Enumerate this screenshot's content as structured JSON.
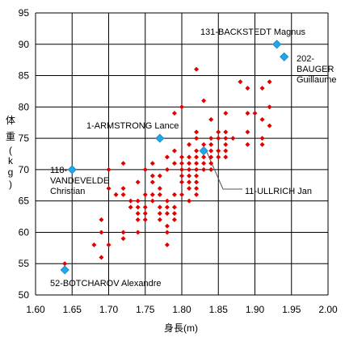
{
  "chart_data": {
    "type": "scatter",
    "title": "",
    "xlabel": "身長(m)",
    "ylabel_chars": [
      "体",
      "重",
      "(",
      "k",
      "g",
      ")"
    ],
    "xlim": [
      1.6,
      2.0
    ],
    "ylim": [
      50,
      95
    ],
    "xticks": [
      "1.60",
      "1.65",
      "1.70",
      "1.75",
      "1.80",
      "1.85",
      "1.90",
      "1.95",
      "2.00"
    ],
    "yticks": [
      "50",
      "55",
      "60",
      "65",
      "70",
      "75",
      "80",
      "85",
      "90",
      "95"
    ],
    "grid": true,
    "colors": {
      "riders": "#e00000",
      "highlight": "#1fa8ea",
      "highlight_edge": "#1b7fc0",
      "grid": "#000000"
    },
    "series": [
      {
        "points": [
          [
            1.64,
            55
          ],
          [
            1.68,
            58
          ],
          [
            1.69,
            60
          ],
          [
            1.69,
            62
          ],
          [
            1.69,
            56
          ],
          [
            1.7,
            58
          ],
          [
            1.7,
            70
          ],
          [
            1.7,
            67
          ],
          [
            1.71,
            66
          ],
          [
            1.72,
            71
          ],
          [
            1.72,
            67
          ],
          [
            1.72,
            66
          ],
          [
            1.72,
            59
          ],
          [
            1.72,
            60
          ],
          [
            1.73,
            64
          ],
          [
            1.73,
            65
          ],
          [
            1.74,
            68
          ],
          [
            1.74,
            65
          ],
          [
            1.74,
            64
          ],
          [
            1.74,
            63
          ],
          [
            1.74,
            62
          ],
          [
            1.74,
            60
          ],
          [
            1.75,
            70
          ],
          [
            1.75,
            66
          ],
          [
            1.75,
            64
          ],
          [
            1.75,
            63
          ],
          [
            1.75,
            62
          ],
          [
            1.76,
            71
          ],
          [
            1.76,
            69
          ],
          [
            1.76,
            68
          ],
          [
            1.76,
            66
          ],
          [
            1.76,
            65
          ],
          [
            1.77,
            69
          ],
          [
            1.77,
            67
          ],
          [
            1.77,
            66
          ],
          [
            1.77,
            64
          ],
          [
            1.77,
            63
          ],
          [
            1.77,
            62
          ],
          [
            1.78,
            72
          ],
          [
            1.78,
            70
          ],
          [
            1.78,
            65
          ],
          [
            1.78,
            64
          ],
          [
            1.78,
            63
          ],
          [
            1.78,
            61
          ],
          [
            1.78,
            58
          ],
          [
            1.78,
            60
          ],
          [
            1.79,
            79
          ],
          [
            1.79,
            73
          ],
          [
            1.79,
            71
          ],
          [
            1.79,
            66
          ],
          [
            1.79,
            64
          ],
          [
            1.79,
            63
          ],
          [
            1.79,
            62
          ],
          [
            1.8,
            80
          ],
          [
            1.8,
            72
          ],
          [
            1.8,
            71
          ],
          [
            1.8,
            70
          ],
          [
            1.8,
            69
          ],
          [
            1.8,
            68
          ],
          [
            1.8,
            66
          ],
          [
            1.81,
            74
          ],
          [
            1.81,
            72
          ],
          [
            1.81,
            71
          ],
          [
            1.81,
            70
          ],
          [
            1.81,
            69
          ],
          [
            1.81,
            68
          ],
          [
            1.81,
            67
          ],
          [
            1.81,
            65
          ],
          [
            1.82,
            86
          ],
          [
            1.82,
            76
          ],
          [
            1.82,
            75
          ],
          [
            1.82,
            73
          ],
          [
            1.82,
            72
          ],
          [
            1.82,
            71
          ],
          [
            1.82,
            70
          ],
          [
            1.82,
            69
          ],
          [
            1.82,
            68
          ],
          [
            1.82,
            67
          ],
          [
            1.82,
            66
          ],
          [
            1.83,
            81
          ],
          [
            1.83,
            74
          ],
          [
            1.83,
            72
          ],
          [
            1.83,
            71
          ],
          [
            1.83,
            70
          ],
          [
            1.84,
            78
          ],
          [
            1.84,
            75
          ],
          [
            1.84,
            74
          ],
          [
            1.84,
            73
          ],
          [
            1.84,
            72
          ],
          [
            1.84,
            71
          ],
          [
            1.84,
            70
          ],
          [
            1.85,
            76
          ],
          [
            1.85,
            75
          ],
          [
            1.85,
            73
          ],
          [
            1.85,
            72
          ],
          [
            1.86,
            79
          ],
          [
            1.86,
            76
          ],
          [
            1.86,
            75
          ],
          [
            1.86,
            74
          ],
          [
            1.86,
            73
          ],
          [
            1.86,
            72
          ],
          [
            1.87,
            75
          ],
          [
            1.88,
            84
          ],
          [
            1.89,
            83
          ],
          [
            1.89,
            79
          ],
          [
            1.89,
            76
          ],
          [
            1.89,
            74
          ],
          [
            1.9,
            79
          ],
          [
            1.91,
            83
          ],
          [
            1.91,
            78
          ],
          [
            1.91,
            75
          ],
          [
            1.91,
            74
          ],
          [
            1.92,
            80
          ],
          [
            1.92,
            77
          ],
          [
            1.92,
            84
          ]
        ]
      },
      {
        "role": "highlight",
        "points": [
          {
            "x": 1.93,
            "y": 90,
            "label": "131-BACKSTEDT Magnus"
          },
          {
            "x": 1.94,
            "y": 88,
            "label": "202-\nBAUGER\nGuillaume"
          },
          {
            "x": 1.77,
            "y": 75,
            "label": "1-ARMSTRONG Lance"
          },
          {
            "x": 1.83,
            "y": 73,
            "label": "11-ULLRICH Jan"
          },
          {
            "x": 1.65,
            "y": 70,
            "label": "118-\nVANDEVELDE\nChristian"
          },
          {
            "x": 1.64,
            "y": 54,
            "label": "52-BOTCHAROV Alexandre"
          }
        ]
      }
    ]
  }
}
